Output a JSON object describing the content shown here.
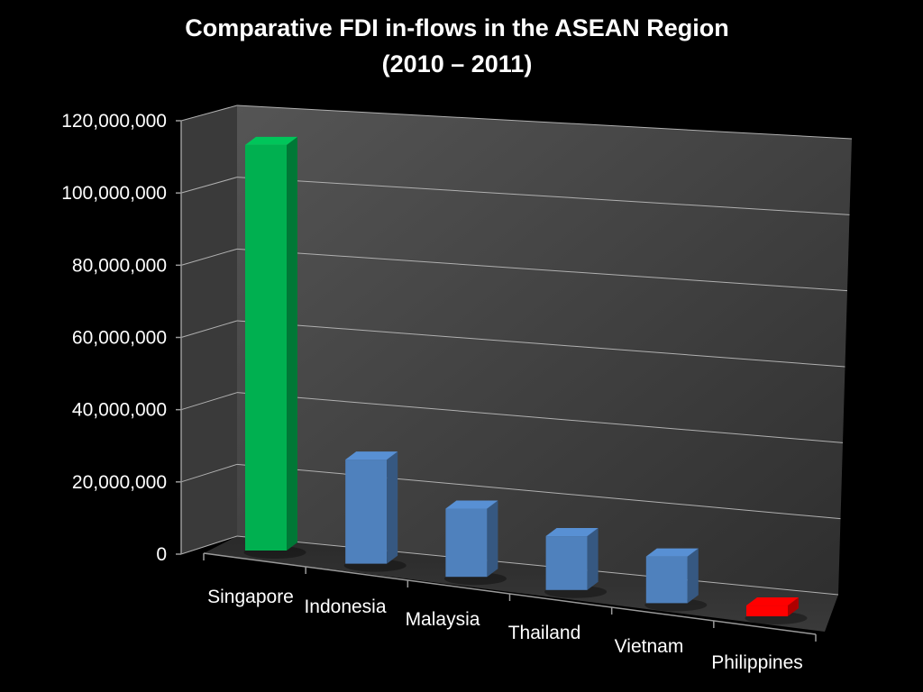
{
  "chart_data": {
    "type": "bar",
    "title": "Comparative FDI in-flows in the ASEAN Region",
    "subtitle": "(2010 – 2011)",
    "categories": [
      "Singapore",
      "Indonesia",
      "Malaysia",
      "Thailand",
      "Vietnam",
      "Philippines"
    ],
    "values": [
      113000000,
      29000000,
      19000000,
      15000000,
      13000000,
      3000000
    ],
    "bar_colors": [
      "#00b050",
      "#4f81bd",
      "#4f81bd",
      "#4f81bd",
      "#4f81bd",
      "#ff0000"
    ],
    "y_ticks": [
      "0",
      "20,000,000",
      "40,000,000",
      "60,000,000",
      "80,000,000",
      "100,000,000",
      "120,000,000"
    ],
    "ylim": [
      0,
      120000000
    ],
    "grid": true,
    "legend": "none",
    "style": "3d-column",
    "xlabel": "",
    "ylabel": ""
  }
}
